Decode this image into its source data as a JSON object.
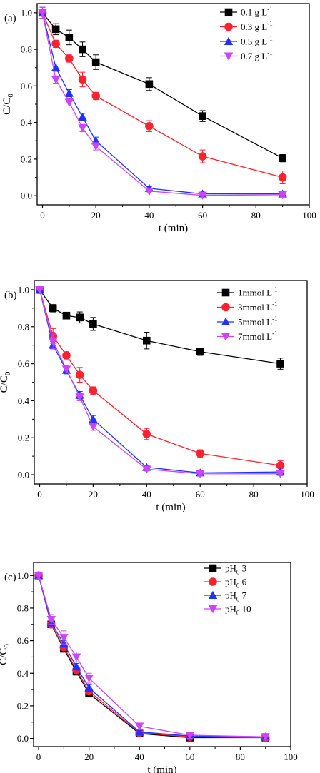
{
  "chart_data": [
    {
      "type": "line",
      "panel_label": "(a)",
      "xlabel": "t (min)",
      "ylabel": "C/C",
      "ylabel_sub": "0",
      "xlim": [
        -2,
        100
      ],
      "ylim": [
        -0.05,
        1.05
      ],
      "xticks": [
        0,
        20,
        40,
        60,
        80,
        100
      ],
      "yticks": [
        0.0,
        0.2,
        0.4,
        0.6,
        0.8,
        1.0
      ],
      "legend_position": "top-right",
      "x": [
        0,
        5,
        10,
        15,
        20,
        40,
        60,
        90
      ],
      "series": [
        {
          "name": "0.1 g L",
          "name_sup": "-1",
          "color": "#000000",
          "marker": "square",
          "values": [
            1.0,
            0.91,
            0.865,
            0.8,
            0.73,
            0.61,
            0.435,
            0.205
          ],
          "errors": [
            0.03,
            0.03,
            0.04,
            0.04,
            0.04,
            0.035,
            0.03,
            0.02
          ]
        },
        {
          "name": "0.3 g L",
          "name_sup": "-1",
          "color": "#ff2030",
          "marker": "circle",
          "values": [
            1.0,
            0.83,
            0.75,
            0.635,
            0.545,
            0.38,
            0.215,
            0.1
          ],
          "errors": [
            0.03,
            0.02,
            0.02,
            0.04,
            0.02,
            0.03,
            0.035,
            0.035
          ]
        },
        {
          "name": "0.5 g L",
          "name_sup": "-1",
          "color": "#2030ff",
          "marker": "triangle-up",
          "values": [
            1.0,
            0.7,
            0.56,
            0.43,
            0.3,
            0.04,
            0.01,
            0.01
          ],
          "errors": [
            0.03,
            0.02,
            0.02,
            0.02,
            0.02,
            0.01,
            0.01,
            0.01
          ]
        },
        {
          "name": "0.7 g L",
          "name_sup": "-1",
          "color": "#cc44ff",
          "marker": "triangle-down",
          "values": [
            1.0,
            0.635,
            0.51,
            0.37,
            0.27,
            0.025,
            0.002,
            0.005
          ],
          "errors": [
            0.03,
            0.02,
            0.02,
            0.02,
            0.02,
            0.01,
            0.01,
            0.01
          ]
        }
      ]
    },
    {
      "type": "line",
      "panel_label": "(b)",
      "xlabel": "t (min)",
      "ylabel": "C/C",
      "ylabel_sub": "0",
      "xlim": [
        -2,
        100
      ],
      "ylim": [
        -0.05,
        1.05
      ],
      "xticks": [
        0,
        20,
        40,
        60,
        80,
        100
      ],
      "yticks": [
        0.0,
        0.2,
        0.4,
        0.6,
        0.8,
        1.0
      ],
      "legend_position": "top-right",
      "x": [
        0,
        5,
        10,
        15,
        20,
        40,
        60,
        90
      ],
      "series": [
        {
          "name": "1mmol L",
          "name_sup": "-1",
          "color": "#000000",
          "marker": "square",
          "values": [
            1.0,
            0.9,
            0.86,
            0.85,
            0.815,
            0.725,
            0.665,
            0.6
          ],
          "errors": [
            0.02,
            0.02,
            0.01,
            0.03,
            0.035,
            0.045,
            0.02,
            0.03
          ]
        },
        {
          "name": "3mmol L",
          "name_sup": "-1",
          "color": "#ff2030",
          "marker": "circle",
          "values": [
            1.0,
            0.75,
            0.645,
            0.54,
            0.455,
            0.22,
            0.115,
            0.05
          ],
          "errors": [
            0.02,
            0.04,
            0.02,
            0.04,
            0.02,
            0.03,
            0.02,
            0.025
          ]
        },
        {
          "name": "5mmol L",
          "name_sup": "-1",
          "color": "#2030ff",
          "marker": "triangle-up",
          "values": [
            1.0,
            0.7,
            0.565,
            0.43,
            0.3,
            0.04,
            0.01,
            0.015
          ],
          "errors": [
            0.02,
            0.02,
            0.02,
            0.02,
            0.02,
            0.01,
            0.01,
            0.01
          ]
        },
        {
          "name": "7mmol L",
          "name_sup": "-1",
          "color": "#cc44ff",
          "marker": "triangle-down",
          "values": [
            1.0,
            0.72,
            0.57,
            0.42,
            0.26,
            0.03,
            0.005,
            0.005
          ],
          "errors": [
            0.02,
            0.04,
            0.02,
            0.02,
            0.02,
            0.01,
            0.01,
            0.01
          ]
        }
      ]
    },
    {
      "type": "line",
      "panel_label": "(c)",
      "xlabel": "t (min)",
      "ylabel": "C/C",
      "ylabel_sub": "0",
      "xlim": [
        -2,
        100
      ],
      "ylim": [
        -0.05,
        1.08
      ],
      "xticks": [
        0,
        20,
        40,
        60,
        80,
        100
      ],
      "yticks": [
        0.0,
        0.2,
        0.4,
        0.6,
        0.8,
        1.0
      ],
      "legend_position": "top-right",
      "x": [
        0,
        5,
        10,
        15,
        20,
        40,
        60,
        90
      ],
      "series": [
        {
          "name": "pH",
          "name_sub": "0",
          "name_tail": " 3",
          "color": "#000000",
          "marker": "square",
          "values": [
            1.0,
            0.7,
            0.55,
            0.41,
            0.275,
            0.03,
            0.005,
            0.005
          ],
          "errors": [
            0.02,
            0.02,
            0.02,
            0.02,
            0.02,
            0.01,
            0.01,
            0.01
          ]
        },
        {
          "name": "pH",
          "name_sub": "0",
          "name_tail": " 6",
          "color": "#ff2030",
          "marker": "circle",
          "values": [
            1.0,
            0.7,
            0.56,
            0.42,
            0.29,
            0.035,
            0.01,
            0.005
          ],
          "errors": [
            0.02,
            0.02,
            0.02,
            0.02,
            0.02,
            0.01,
            0.01,
            0.01
          ]
        },
        {
          "name": "pH",
          "name_sub": "0",
          "name_tail": " 7",
          "color": "#2030ff",
          "marker": "triangle-up",
          "values": [
            1.0,
            0.71,
            0.58,
            0.44,
            0.31,
            0.04,
            0.015,
            0.01
          ],
          "errors": [
            0.02,
            0.02,
            0.02,
            0.02,
            0.02,
            0.01,
            0.01,
            0.01
          ]
        },
        {
          "name": "pH",
          "name_sub": "0",
          "name_tail": " 10",
          "color": "#cc44ff",
          "marker": "triangle-down",
          "values": [
            1.0,
            0.73,
            0.62,
            0.5,
            0.37,
            0.075,
            0.02,
            0.01
          ],
          "errors": [
            0.02,
            0.03,
            0.04,
            0.03,
            0.03,
            0.02,
            0.02,
            0.02
          ]
        }
      ]
    }
  ]
}
